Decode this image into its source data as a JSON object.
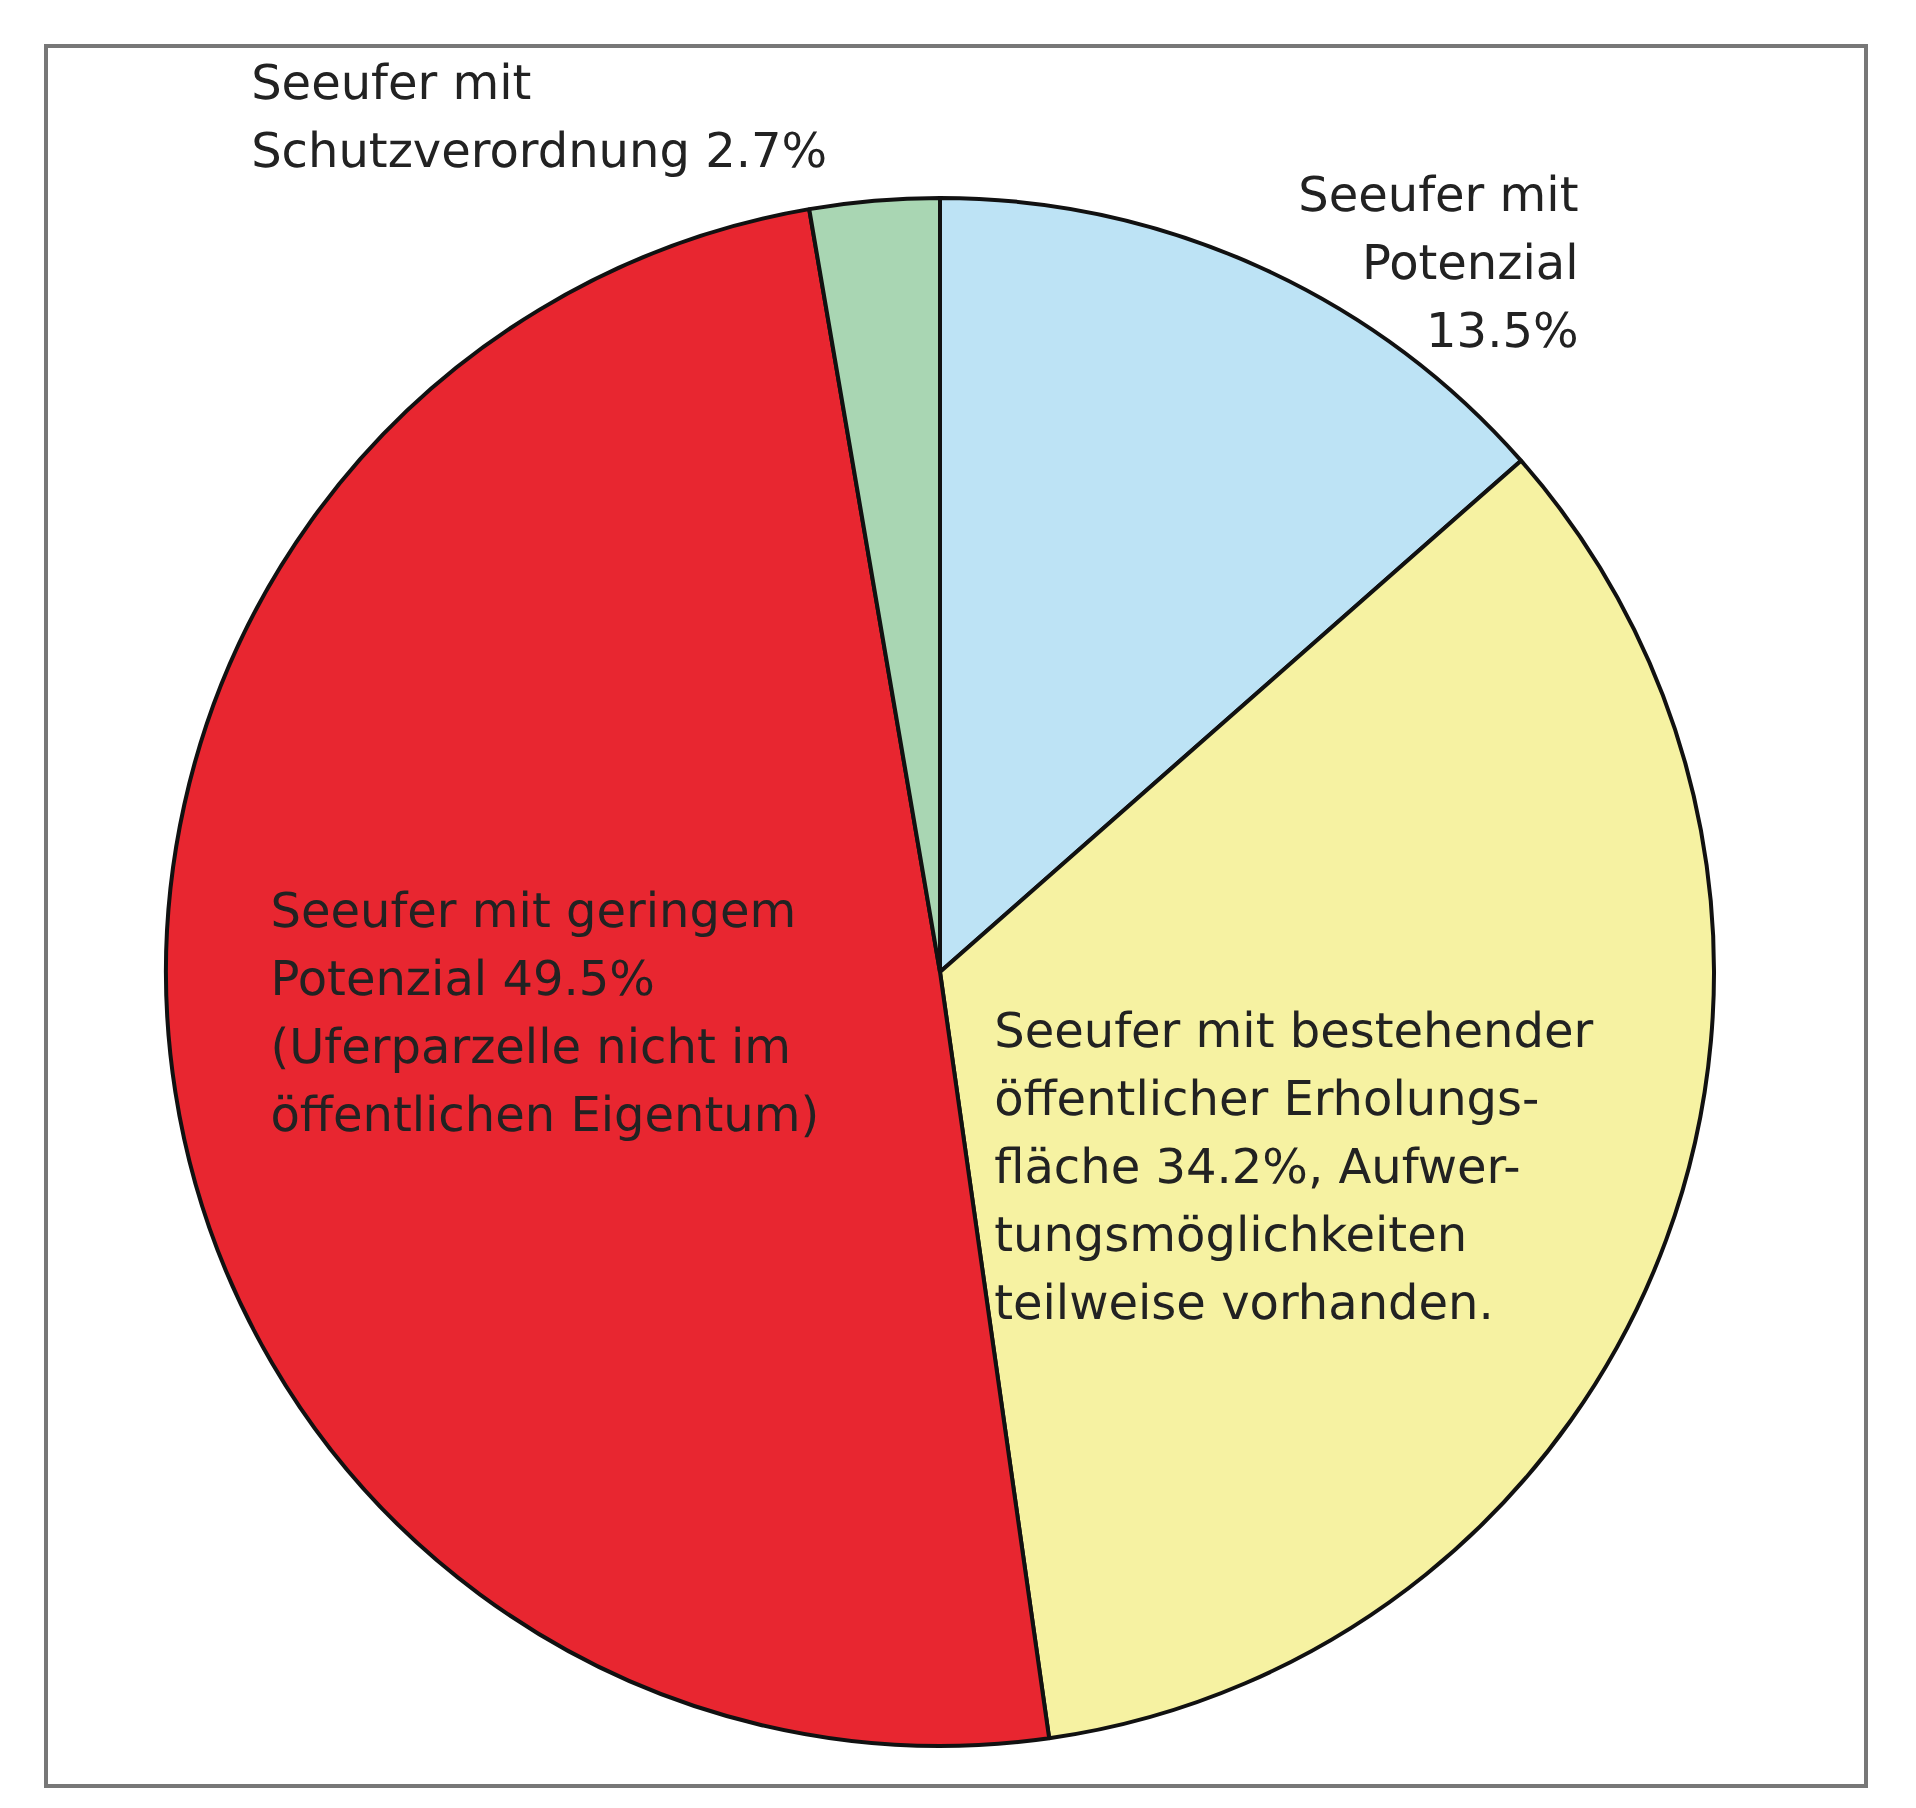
{
  "chart_data": {
    "type": "pie",
    "categories": [
      "Seeufer mit\nPotenzial\n13.5%",
      "Seeufer mit bestehender\nöffentlicher Erholungs-\nfläche 34.2%, Aufwer-\ntungsmöglichkeiten\nteilweise vorhanden.",
      "Seeufer mit geringem\nPotenzial 49.5%\n(Uferparzelle nicht im\nöffentlichen Eigentum)",
      "Seeufer mit\nSchutzverordnung 2.7%"
    ],
    "values": [
      13.5,
      34.2,
      49.5,
      2.7
    ],
    "colors": [
      "#bde3f5",
      "#f6f2a2",
      "#e82630",
      "#a9d6b3"
    ]
  }
}
